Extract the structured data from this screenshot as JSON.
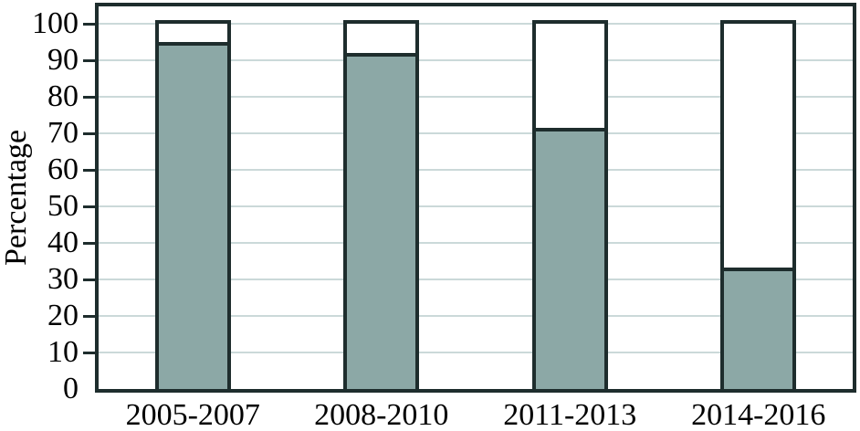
{
  "chart_data": {
    "type": "bar",
    "stacked": true,
    "title": "",
    "xlabel": "",
    "ylabel": "Percentage",
    "categories": [
      "2005-2007",
      "2008-2010",
      "2011-2013",
      "2014-2016"
    ],
    "series": [
      {
        "name": "shaded",
        "color": "#8ca8a6",
        "values": [
          95,
          92,
          71.5,
          33.3
        ]
      },
      {
        "name": "unshaded",
        "color": "#ffffff",
        "values": [
          5,
          8,
          28.5,
          66.7
        ]
      }
    ],
    "ylim": [
      0,
      105
    ],
    "yticks": [
      0,
      10,
      20,
      30,
      40,
      50,
      60,
      70,
      80,
      90,
      100
    ],
    "grid": "horizontal",
    "legend": "none",
    "frame_color": "#1e2d2d",
    "bar_border_color": "#1e2d2d",
    "gridline_color": "#cbd9d9",
    "text_color": "#000000"
  }
}
